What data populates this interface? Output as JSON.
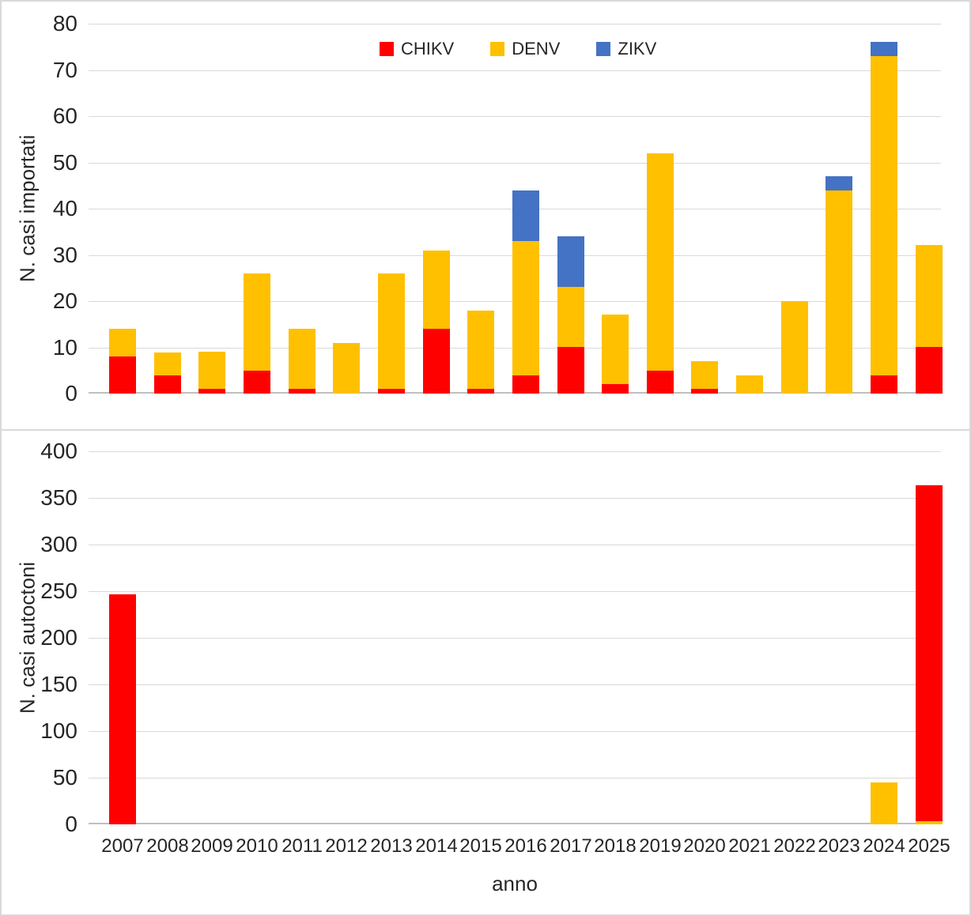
{
  "figure": {
    "background": "#FFFFFF",
    "border_color": "#D9D9D9",
    "gridline_color": "#D9D9D9",
    "axis_line_color": "#BFBFBF",
    "text_color": "#262626"
  },
  "chart_data": [
    {
      "type": "bar",
      "stacked": true,
      "title": "",
      "ylabel": "N. casi importati",
      "categories": [
        "2007",
        "2008",
        "2009",
        "2010",
        "2011",
        "2012",
        "2013",
        "2014",
        "2015",
        "2016",
        "2017",
        "2018",
        "2019",
        "2020",
        "2021",
        "2022",
        "2023",
        "2024",
        "2025"
      ],
      "series": [
        {
          "name": "CHIKV",
          "color": "#FF0000",
          "values": [
            8,
            4,
            1,
            5,
            1,
            0,
            1,
            14,
            1,
            4,
            10,
            2,
            5,
            1,
            0,
            0,
            0,
            4,
            10
          ]
        },
        {
          "name": "DENV",
          "color": "#FFC000",
          "values": [
            6,
            5,
            8,
            21,
            13,
            11,
            25,
            17,
            17,
            29,
            13,
            15,
            47,
            6,
            4,
            20,
            44,
            69,
            22
          ]
        },
        {
          "name": "ZIKV",
          "color": "#4472C4",
          "values": [
            0,
            0,
            0,
            0,
            0,
            0,
            0,
            0,
            0,
            11,
            11,
            0,
            0,
            0,
            0,
            0,
            3,
            3,
            0
          ]
        }
      ],
      "stack_totals": [
        14,
        9,
        9,
        26,
        14,
        11,
        26,
        31,
        18,
        44,
        34,
        17,
        52,
        7,
        4,
        20,
        47,
        76,
        32
      ],
      "ylim": [
        0,
        80
      ],
      "yticks": [
        80,
        70,
        60,
        50,
        40,
        30,
        20,
        10,
        0
      ],
      "grid": true,
      "legend_position": "top-center"
    },
    {
      "type": "bar",
      "stacked": true,
      "title": "",
      "ylabel": "N. casi autoctoni",
      "xlabel": "anno",
      "categories": [
        "2007",
        "2008",
        "2009",
        "2010",
        "2011",
        "2012",
        "2013",
        "2014",
        "2015",
        "2016",
        "2017",
        "2018",
        "2019",
        "2020",
        "2021",
        "2022",
        "2023",
        "2024",
        "2025"
      ],
      "series": [
        {
          "name": "DENV",
          "color": "#FFC000",
          "values": [
            0,
            0,
            0,
            0,
            0,
            0,
            0,
            0,
            0,
            0,
            0,
            0,
            0,
            0,
            0,
            0,
            0,
            45,
            3
          ]
        },
        {
          "name": "CHIKV",
          "color": "#FF0000",
          "values": [
            247,
            0,
            0,
            0,
            0,
            0,
            0,
            0,
            0,
            0,
            0,
            0,
            0,
            0,
            0,
            0,
            0,
            0,
            360
          ]
        }
      ],
      "stack_totals": [
        247,
        0,
        0,
        0,
        0,
        0,
        0,
        0,
        0,
        0,
        0,
        0,
        0,
        0,
        0,
        0,
        0,
        45,
        363
      ],
      "ylim": [
        0,
        400
      ],
      "yticks": [
        400,
        350,
        300,
        250,
        200,
        150,
        100,
        50,
        0
      ],
      "grid": true,
      "legend_position": "none"
    }
  ]
}
